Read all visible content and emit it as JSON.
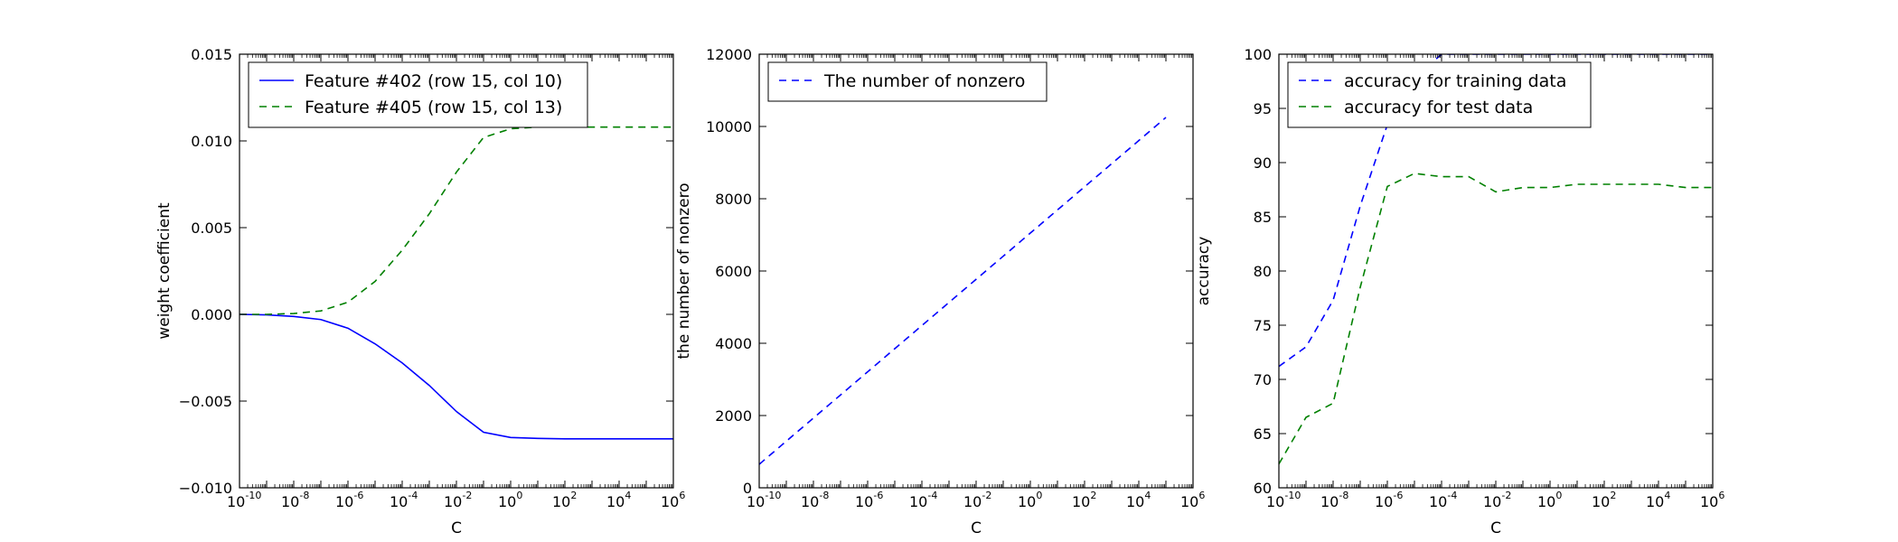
{
  "chart_data": [
    {
      "type": "line",
      "title": "",
      "xlabel": "C",
      "ylabel": "weight coefficient",
      "xscale": "log",
      "xlim_exp": [
        -10,
        6
      ],
      "xticks_exp": [
        -10,
        -8,
        -6,
        -4,
        -2,
        0,
        2,
        4,
        6
      ],
      "ylim": [
        -0.01,
        0.015
      ],
      "yticks": [
        -0.01,
        -0.005,
        0.0,
        0.005,
        0.01,
        0.015
      ],
      "ytick_labels": [
        "−0.010",
        "−0.005",
        "0.000",
        "0.005",
        "0.010",
        "0.015"
      ],
      "grid": false,
      "legend_loc": "upper-left",
      "x": [
        1e-10,
        1e-09,
        1e-08,
        1e-07,
        1e-06,
        1e-05,
        0.0001,
        0.001,
        0.01,
        0.1,
        1,
        10,
        100,
        1000,
        10000,
        100000,
        1000000
      ],
      "series": [
        {
          "name": "Feature #402 (row 15, col 10)",
          "color": "#0000ff",
          "dash": "solid",
          "values": [
            0.0,
            -3e-05,
            -0.00012,
            -0.0003,
            -0.0008,
            -0.0017,
            -0.0028,
            -0.0041,
            -0.0056,
            -0.0068,
            -0.0071,
            -0.00715,
            -0.00718,
            -0.00718,
            -0.00718,
            -0.00718,
            -0.00718
          ]
        },
        {
          "name": "Feature #405 (row 15, col 13)",
          "color": "#008000",
          "dash": "dashed",
          "values": [
            0.0,
            0.0,
            5e-05,
            0.0002,
            0.0007,
            0.0019,
            0.0037,
            0.0058,
            0.0082,
            0.0102,
            0.0107,
            0.0108,
            0.0108,
            0.0108,
            0.0108,
            0.0108,
            0.0108
          ]
        }
      ]
    },
    {
      "type": "line",
      "title": "",
      "xlabel": "C",
      "ylabel": "the number of nonzero",
      "xscale": "log",
      "xlim_exp": [
        -10,
        6
      ],
      "xticks_exp": [
        -10,
        -8,
        -6,
        -4,
        -2,
        0,
        2,
        4,
        6
      ],
      "ylim": [
        0,
        12000
      ],
      "yticks": [
        0,
        2000,
        4000,
        6000,
        8000,
        10000,
        12000
      ],
      "ytick_labels": [
        "0",
        "2000",
        "4000",
        "6000",
        "8000",
        "10000",
        "12000"
      ],
      "grid": false,
      "legend_loc": "upper-left",
      "x": [
        1e-10,
        100000.0
      ],
      "series": [
        {
          "name": "The number of nonzero",
          "color": "#0000ff",
          "dash": "dashed",
          "values": [
            650,
            10250
          ]
        }
      ]
    },
    {
      "type": "line",
      "title": "",
      "xlabel": "C",
      "ylabel": "accuracy",
      "xscale": "log",
      "xlim_exp": [
        -10,
        6
      ],
      "xticks_exp": [
        -10,
        -8,
        -6,
        -4,
        -2,
        0,
        2,
        4,
        6
      ],
      "ylim": [
        60,
        100
      ],
      "yticks": [
        60,
        65,
        70,
        75,
        80,
        85,
        90,
        95,
        100
      ],
      "ytick_labels": [
        "60",
        "65",
        "70",
        "75",
        "80",
        "85",
        "90",
        "95",
        "100"
      ],
      "grid": false,
      "legend_loc": "upper-left",
      "x": [
        1e-10,
        1e-09,
        1e-08,
        1e-07,
        1e-06,
        1e-05,
        0.0001,
        0.001,
        0.01,
        0.1,
        1,
        10,
        100,
        1000,
        10000,
        100000,
        1000000
      ],
      "series": [
        {
          "name": "accuracy for training data",
          "color": "#0000ff",
          "dash": "dashed",
          "values": [
            71.2,
            73.0,
            77.3,
            86.0,
            93.5,
            97.8,
            100.0,
            100.0,
            100.0,
            100.0,
            100.0,
            100.0,
            100.0,
            100.0,
            100.0,
            100.0,
            100.0
          ]
        },
        {
          "name": "accuracy for test data",
          "color": "#008000",
          "dash": "dashed",
          "values": [
            62.2,
            66.5,
            67.8,
            78.5,
            87.8,
            89.0,
            88.7,
            88.7,
            87.3,
            87.7,
            87.7,
            88.0,
            88.0,
            88.0,
            88.0,
            87.7,
            87.7
          ]
        }
      ]
    }
  ]
}
